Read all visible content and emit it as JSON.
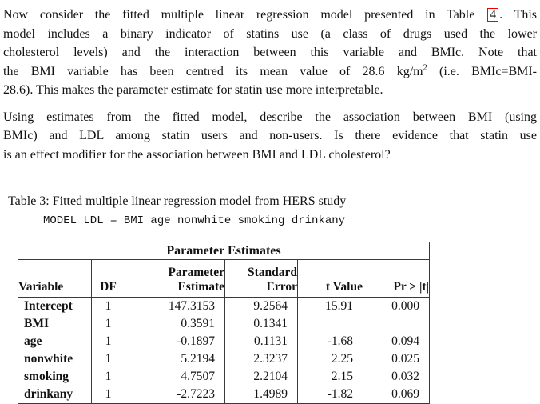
{
  "para1": {
    "line1_pre": "Now consider the fitted multiple linear regression model presented in Table",
    "line1_link": "4",
    "line1_post": ". This",
    "line2": "model includes a binary indicator of statins use (a class of drugs used the lower",
    "line3": "cholesterol levels) and the interaction between this variable and BMIc. Note that",
    "line4_pre": "the BMI variable has been centred its mean value of 28.6 kg/m",
    "line4_sup": "2",
    "line4_post": " (i.e. BMIc=BMI-",
    "line5": "28.6). This makes the parameter estimate for statin use more interpretable."
  },
  "para2": {
    "line1": "Using estimates from the fitted model, describe the association between BMI (using",
    "line2": "BMIc) and LDL among statin users and non-users. Is there evidence that statin use",
    "line3": "is an effect modifier for the association between BMI and LDL cholesterol?"
  },
  "caption": "Table 3: Fitted multiple linear regression model from HERS study",
  "model_line": "MODEL LDL = BMI age nonwhite smoking drinkany",
  "table": {
    "title": "Parameter Estimates",
    "headers": {
      "variable": "Variable",
      "df": "DF",
      "estimate_line1": "Parameter",
      "estimate_line2": "Estimate",
      "stderr_line1": "Standard",
      "stderr_line2": "Error",
      "t_value": "t Value",
      "pr": "Pr > |t|"
    },
    "rows": [
      {
        "variable": "Intercept",
        "df": "1",
        "estimate": "147.3153",
        "std_error": "9.2564",
        "t_value": "15.91",
        "pr": "0.000"
      },
      {
        "variable": "BMI",
        "df": "1",
        "estimate": "0.3591",
        "std_error": "0.1341",
        "t_value": "",
        "pr": ""
      },
      {
        "variable": "age",
        "df": "1",
        "estimate": "-0.1897",
        "std_error": "0.1131",
        "t_value": "-1.68",
        "pr": "0.094"
      },
      {
        "variable": "nonwhite",
        "df": "1",
        "estimate": "5.2194",
        "std_error": "2.3237",
        "t_value": "2.25",
        "pr": "0.025"
      },
      {
        "variable": "smoking",
        "df": "1",
        "estimate": "4.7507",
        "std_error": "2.2104",
        "t_value": "2.15",
        "pr": "0.032"
      },
      {
        "variable": "drinkany",
        "df": "1",
        "estimate": "-2.7223",
        "std_error": "1.4989",
        "t_value": "-1.82",
        "pr": "0.069"
      }
    ]
  },
  "colors": {
    "text": "#131313",
    "link_box": "#ee0000",
    "table_border": "#3a3a3a",
    "background": "#ffffff"
  }
}
